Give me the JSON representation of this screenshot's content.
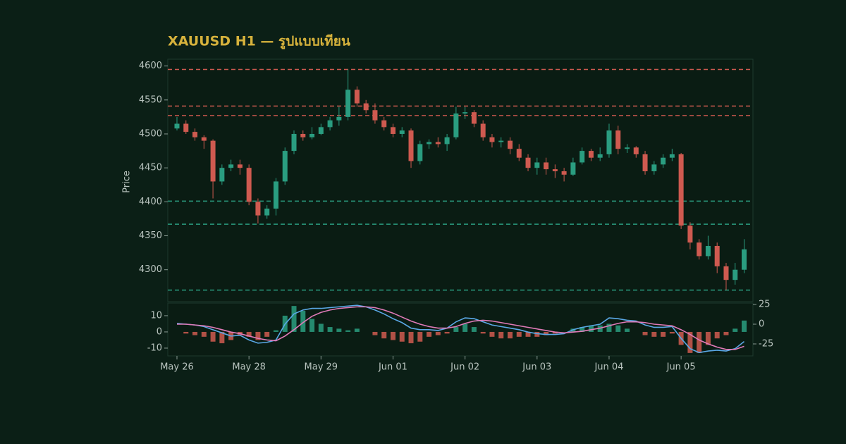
{
  "chart_data": [
    {
      "type": "candlestick",
      "title": "XAUUSD H1 — รูปแบบเทียน",
      "ylabel": "Price",
      "up_color": "#2a9d80",
      "down_color": "#cf5a50",
      "ylim": [
        4253,
        4610
      ],
      "yticks": [
        4300,
        4350,
        4400,
        4450,
        4500,
        4550,
        4600
      ],
      "levels": [
        {
          "value": 4595,
          "color": "#cf5a50"
        },
        {
          "value": 4541,
          "color": "#cf5a50"
        },
        {
          "value": 4527,
          "color": "#cf5a50"
        },
        {
          "value": 4401,
          "color": "#2a9d80"
        },
        {
          "value": 4367,
          "color": "#2a9d80"
        },
        {
          "value": 4270,
          "color": "#2a9d80"
        }
      ],
      "open": [
        4508,
        4515,
        4503,
        4495,
        4490,
        4430,
        4450,
        4455,
        4450,
        4400,
        4380,
        4390,
        4430,
        4475,
        4500,
        4495,
        4500,
        4510,
        4520,
        4525,
        4565,
        4545,
        4535,
        4520,
        4510,
        4500,
        4505,
        4460,
        4485,
        4488,
        4485,
        4495,
        4530,
        4532,
        4515,
        4495,
        4488,
        4490,
        4478,
        4465,
        4450,
        4458,
        4448,
        4445,
        4440,
        4458,
        4475,
        4465,
        4470,
        4505,
        4478,
        4480,
        4470,
        4445,
        4455,
        4465,
        4470,
        4365,
        4340,
        4320,
        4335,
        4305,
        4285,
        4300
      ],
      "high": [
        4525,
        4520,
        4508,
        4498,
        4492,
        4455,
        4462,
        4462,
        4455,
        4405,
        4395,
        4435,
        4480,
        4505,
        4505,
        4510,
        4515,
        4525,
        4540,
        4595,
        4570,
        4550,
        4545,
        4525,
        4515,
        4510,
        4508,
        4490,
        4492,
        4495,
        4500,
        4540,
        4540,
        4535,
        4520,
        4500,
        4495,
        4495,
        4485,
        4470,
        4465,
        4465,
        4455,
        4450,
        4465,
        4480,
        4478,
        4480,
        4515,
        4512,
        4485,
        4482,
        4475,
        4460,
        4470,
        4478,
        4472,
        4370,
        4345,
        4350,
        4340,
        4310,
        4310,
        4345
      ],
      "low": [
        4505,
        4500,
        4490,
        4478,
        4405,
        4425,
        4445,
        4440,
        4395,
        4368,
        4375,
        4380,
        4425,
        4470,
        4490,
        4492,
        4498,
        4505,
        4512,
        4520,
        4540,
        4530,
        4515,
        4505,
        4495,
        4495,
        4450,
        4455,
        4478,
        4480,
        4475,
        4492,
        4522,
        4510,
        4490,
        4480,
        4480,
        4470,
        4460,
        4445,
        4440,
        4440,
        4435,
        4430,
        4438,
        4455,
        4460,
        4460,
        4465,
        4470,
        4472,
        4465,
        4440,
        4440,
        4450,
        4460,
        4360,
        4330,
        4315,
        4315,
        4295,
        4270,
        4278,
        4295
      ],
      "close": [
        4515,
        4503,
        4495,
        4490,
        4430,
        4450,
        4455,
        4450,
        4400,
        4380,
        4390,
        4430,
        4475,
        4500,
        4495,
        4500,
        4510,
        4520,
        4525,
        4565,
        4545,
        4535,
        4520,
        4510,
        4500,
        4505,
        4460,
        4485,
        4488,
        4485,
        4495,
        4530,
        4532,
        4515,
        4495,
        4488,
        4490,
        4478,
        4465,
        4450,
        4458,
        4448,
        4445,
        4440,
        4458,
        4475,
        4465,
        4470,
        4505,
        4478,
        4480,
        4470,
        4445,
        4455,
        4465,
        4470,
        4365,
        4340,
        4320,
        4335,
        4305,
        4285,
        4300,
        4330
      ]
    },
    {
      "type": "macd",
      "categories": [
        "May 26",
        null,
        null,
        null,
        null,
        null,
        null,
        null,
        "May 28",
        null,
        null,
        null,
        null,
        null,
        null,
        null,
        "May 29",
        null,
        null,
        null,
        null,
        null,
        null,
        null,
        "Jun 01",
        null,
        null,
        null,
        null,
        null,
        null,
        null,
        "Jun 02",
        null,
        null,
        null,
        null,
        null,
        null,
        null,
        "Jun 03",
        null,
        null,
        null,
        null,
        null,
        null,
        null,
        "Jun 04",
        null,
        null,
        null,
        null,
        null,
        null,
        null,
        "Jun 05",
        null,
        null,
        null,
        null,
        null,
        null,
        null
      ],
      "ylim": [
        -14.8,
        17.8
      ],
      "yticks": [
        -10,
        0,
        10
      ],
      "y2lim": [
        -40.2,
        26.8
      ],
      "y2ticks": [
        -25,
        0,
        25
      ],
      "histogram": {
        "up_color": "#2a9d80",
        "down_color": "#cf5a50",
        "values": [
          0,
          -1,
          -2,
          -3,
          -6,
          -7,
          -5,
          -2,
          -3,
          -5,
          -3,
          1,
          10,
          16,
          13,
          8,
          5,
          3,
          2,
          1,
          2,
          0,
          -2,
          -4,
          -5,
          -6,
          -7,
          -6,
          -3,
          -2,
          -1,
          3,
          5,
          3,
          -1,
          -3,
          -4,
          -4,
          -3,
          -3,
          -3,
          -2,
          -1,
          0,
          2,
          3,
          4,
          4,
          5,
          4,
          2,
          0,
          -2,
          -3,
          -3,
          -1,
          -8,
          -13,
          -13,
          -8,
          -4,
          -2,
          2,
          7
        ]
      },
      "series": [
        {
          "color": "#5aa8e6",
          "axis": "y2",
          "values": [
            1,
            0,
            -1,
            -3,
            -7,
            -11,
            -15,
            -14,
            -20,
            -24,
            -23,
            -20,
            0,
            13,
            18,
            20,
            20,
            21,
            22,
            23,
            24,
            22,
            18,
            13,
            7,
            2,
            -5,
            -7,
            -7,
            -8,
            -5,
            3,
            8,
            7,
            3,
            -1,
            -3,
            -5,
            -7,
            -10,
            -12,
            -13,
            -13,
            -12,
            -7,
            -4,
            -2,
            0,
            8,
            7,
            5,
            4,
            -1,
            -4,
            -4,
            -3,
            -18,
            -31,
            -36,
            -34,
            -33,
            -34,
            -31,
            -22
          ]
        },
        {
          "color": "#e07ab8",
          "axis": "y2",
          "values": [
            0,
            0,
            -1,
            -2,
            -4,
            -7,
            -10,
            -12,
            -15,
            -18,
            -20,
            -21,
            -15,
            -7,
            2,
            10,
            15,
            18,
            20,
            21,
            22,
            22,
            21,
            18,
            14,
            9,
            4,
            0,
            -3,
            -5,
            -5,
            -3,
            1,
            4,
            5,
            4,
            2,
            0,
            -2,
            -4,
            -6,
            -8,
            -10,
            -11,
            -10,
            -9,
            -7,
            -5,
            -2,
            1,
            3,
            3,
            2,
            0,
            -1,
            -2,
            -7,
            -13,
            -20,
            -25,
            -29,
            -32,
            -32,
            -28
          ]
        }
      ]
    }
  ]
}
